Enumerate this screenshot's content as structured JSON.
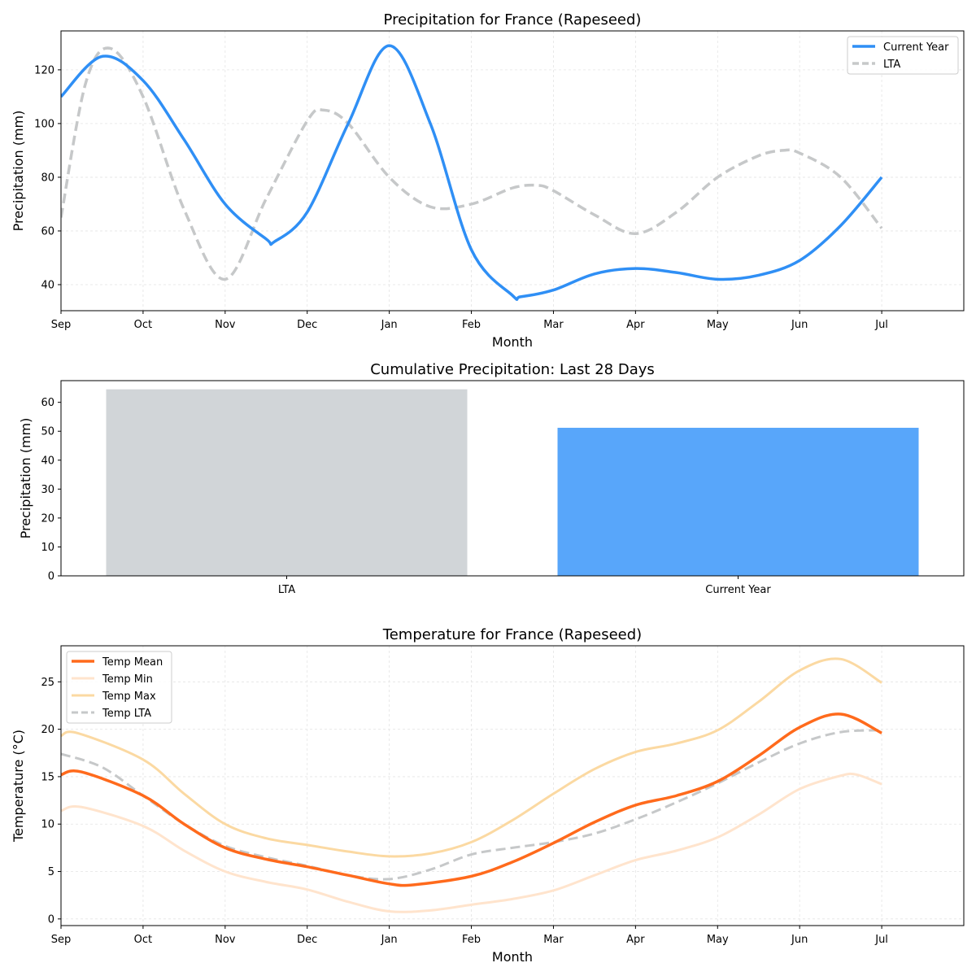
{
  "chart_data": [
    {
      "type": "line",
      "title": "Precipitation for France (Rapeseed)",
      "xlabel": "Month",
      "ylabel": "Precipitation (mm)",
      "xticks": [
        "Sep",
        "Oct",
        "Nov",
        "Dec",
        "Jan",
        "Feb",
        "Mar",
        "Apr",
        "May",
        "Jun",
        "Jul"
      ],
      "xlim": [
        0,
        11
      ],
      "ylim": [
        30.3,
        134.5
      ],
      "yticks": [
        40,
        60,
        80,
        100,
        120
      ],
      "grid": true,
      "legend": "top-right",
      "series": [
        {
          "name": "Current Year",
          "color": "#2f8ff5",
          "style": "solid",
          "x": [
            0,
            0.5,
            1,
            1.5,
            2,
            2.5,
            2.6,
            3,
            3.5,
            4,
            4.5,
            5,
            5.5,
            5.6,
            6,
            6.5,
            7,
            7.5,
            8,
            8.5,
            9,
            9.5,
            10
          ],
          "y": [
            110,
            125,
            116,
            94,
            70,
            57,
            56,
            67,
            100,
            129,
            100,
            53,
            36,
            35.5,
            38,
            44,
            46,
            44.5,
            42,
            43.5,
            49,
            62,
            80
          ]
        },
        {
          "name": "LTA",
          "color": "#c6c8c9",
          "style": "dashed",
          "x": [
            0,
            0.3,
            0.6,
            1,
            1.5,
            2,
            2.5,
            3,
            3.2,
            3.5,
            4,
            4.5,
            5,
            5.5,
            5.8,
            6,
            6.5,
            7,
            7.5,
            8,
            8.5,
            8.8,
            9,
            9.5,
            10
          ],
          "y": [
            65,
            115,
            128,
            110,
            68,
            42,
            72,
            101,
            105,
            100,
            80,
            69,
            70,
            76,
            77,
            75,
            66,
            59,
            67,
            80,
            88,
            90,
            89,
            80,
            61
          ]
        }
      ]
    },
    {
      "type": "bar",
      "title": "Cumulative Precipitation: Last 28 Days",
      "xlabel": "",
      "ylabel": "Precipitation (mm)",
      "categories": [
        "LTA",
        "Current Year"
      ],
      "values": [
        64.5,
        51.2
      ],
      "colors": [
        "#d1d5d8",
        "#58a6fa"
      ],
      "ylim": [
        0,
        67.5
      ],
      "yticks": [
        0,
        10,
        20,
        30,
        40,
        50,
        60
      ],
      "grid": false
    },
    {
      "type": "line",
      "title": "Temperature for France (Rapeseed)",
      "xlabel": "Month",
      "ylabel": "Temperature (°C)",
      "xticks": [
        "Sep",
        "Oct",
        "Nov",
        "Dec",
        "Jan",
        "Feb",
        "Mar",
        "Apr",
        "May",
        "Jun",
        "Jul"
      ],
      "xlim": [
        0,
        11
      ],
      "ylim": [
        -0.7,
        28.8
      ],
      "yticks": [
        0,
        5,
        10,
        15,
        20,
        25
      ],
      "grid": true,
      "legend": "top-left",
      "series": [
        {
          "name": "Temp Mean",
          "color": "#ff6a1c",
          "style": "solid",
          "width": 3.5,
          "x": [
            0,
            0.25,
            1,
            1.5,
            2,
            2.5,
            3,
            3.5,
            4,
            4.3,
            5,
            5.5,
            6,
            6.5,
            7,
            7.5,
            8,
            8.5,
            9,
            9.5,
            10
          ],
          "y": [
            15.2,
            15.5,
            13,
            10,
            7.5,
            6.3,
            5.5,
            4.6,
            3.7,
            3.6,
            4.5,
            6,
            8,
            10.2,
            12,
            13,
            14.5,
            17.2,
            20.2,
            21.6,
            19.6
          ]
        },
        {
          "name": "Temp Min",
          "color": "#ffe4cd",
          "style": "solid",
          "width": 3,
          "x": [
            0,
            0.25,
            1,
            1.5,
            2,
            2.5,
            3,
            3.5,
            4,
            4.5,
            5,
            5.5,
            6,
            6.5,
            7,
            7.5,
            8,
            8.5,
            9,
            9.5,
            9.7,
            10
          ],
          "y": [
            11.4,
            11.8,
            9.8,
            7.2,
            5,
            3.9,
            3.1,
            1.8,
            0.8,
            0.9,
            1.5,
            2.1,
            3,
            4.6,
            6.2,
            7.2,
            8.6,
            11,
            13.7,
            15.1,
            15.2,
            14.2
          ]
        },
        {
          "name": "Temp Max",
          "color": "#fbd9a2",
          "style": "solid",
          "width": 3,
          "x": [
            0,
            0.2,
            1,
            1.5,
            2,
            2.5,
            3,
            3.5,
            4,
            4.5,
            5,
            5.5,
            6,
            6.5,
            7,
            7.5,
            8,
            8.5,
            9,
            9.5,
            10
          ],
          "y": [
            19.3,
            19.6,
            16.8,
            13.2,
            10,
            8.5,
            7.8,
            7.1,
            6.6,
            6.9,
            8.1,
            10.4,
            13.2,
            15.8,
            17.6,
            18.5,
            19.9,
            22.9,
            26.2,
            27.4,
            24.9
          ]
        },
        {
          "name": "Temp LTA",
          "color": "#c6c8c9",
          "style": "dashed",
          "width": 3,
          "x": [
            0,
            0.5,
            1,
            1.5,
            2,
            2.5,
            3,
            3.5,
            4,
            4.5,
            5,
            5.5,
            6,
            6.5,
            7,
            7.5,
            8,
            8.5,
            9,
            9.5,
            10
          ],
          "y": [
            17.4,
            16,
            13,
            10,
            7.7,
            6.5,
            5.6,
            4.6,
            4.2,
            5.2,
            6.8,
            7.5,
            8.1,
            9,
            10.5,
            12.3,
            14.3,
            16.5,
            18.5,
            19.7,
            19.9
          ]
        }
      ]
    }
  ]
}
